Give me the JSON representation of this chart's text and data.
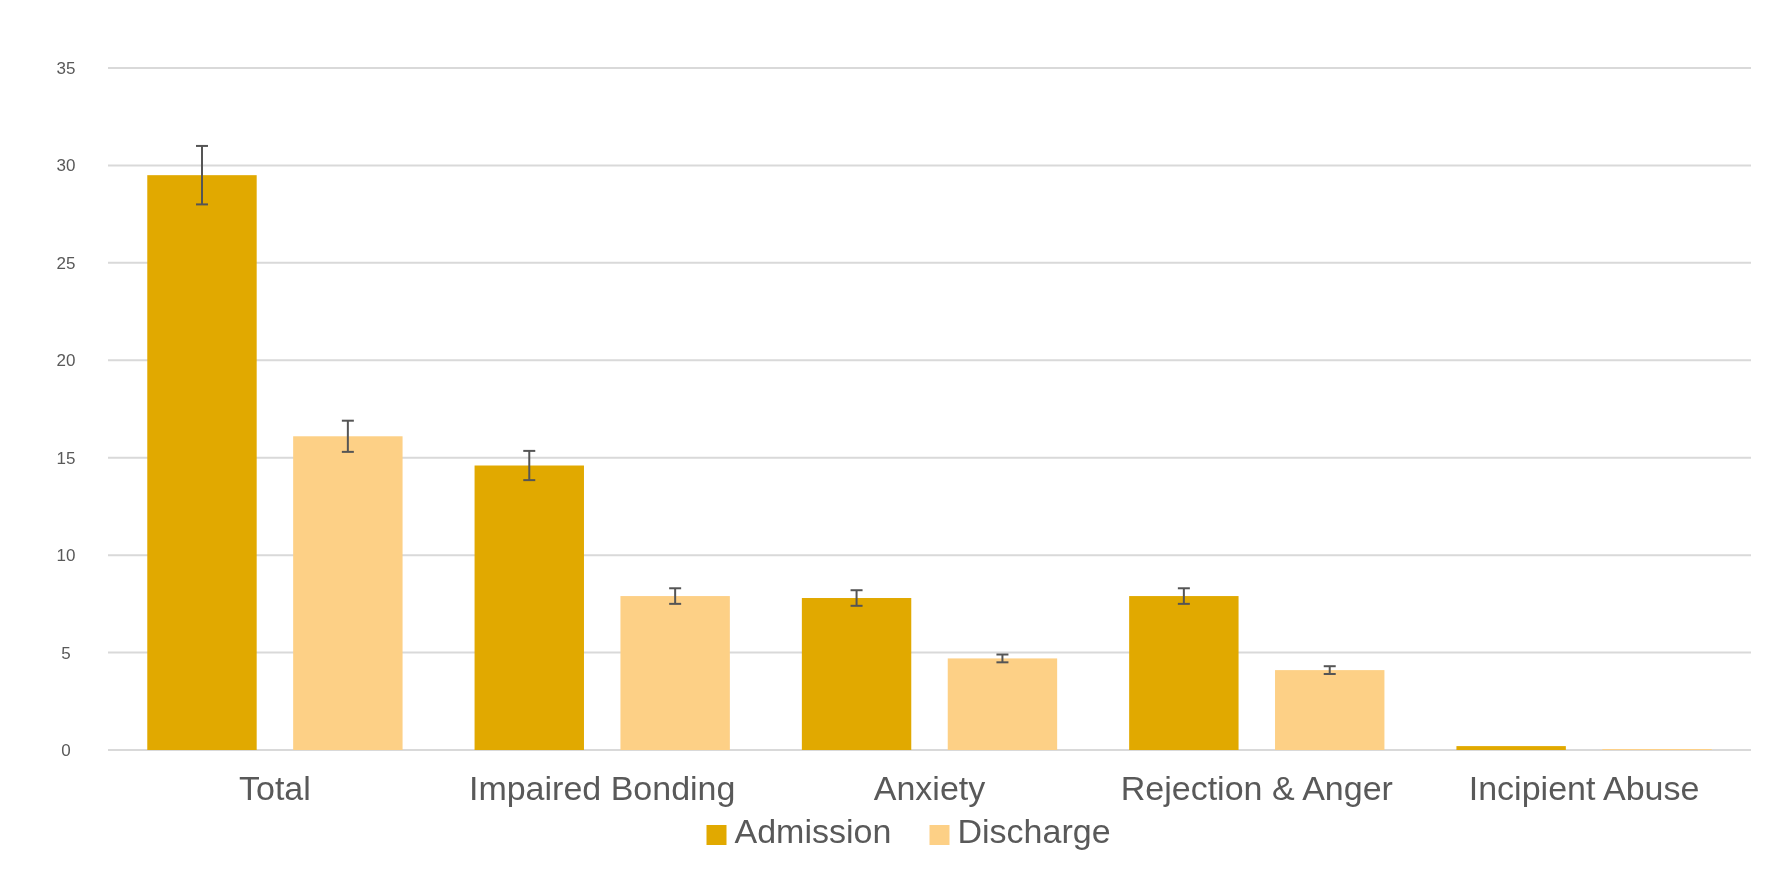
{
  "chart_data": {
    "type": "bar",
    "categories": [
      "Total",
      "Impaired Bonding",
      "Anxiety",
      "Rejection & Anger",
      "Incipient Abuse"
    ],
    "series": [
      {
        "name": "Admission",
        "color": "#e1a900",
        "values": [
          29.5,
          14.6,
          7.8,
          7.9,
          0.2
        ],
        "errors": [
          1.5,
          0.75,
          0.4,
          0.4,
          null
        ]
      },
      {
        "name": "Discharge",
        "color": "#fdd086",
        "values": [
          16.1,
          7.9,
          4.7,
          4.1,
          0.05
        ],
        "errors": [
          0.8,
          0.4,
          0.2,
          0.2,
          null
        ]
      }
    ],
    "ylim": [
      0,
      35
    ],
    "yticks": [
      0,
      5,
      10,
      15,
      20,
      25,
      30,
      35
    ],
    "grid": "y",
    "legend": "bottom"
  }
}
